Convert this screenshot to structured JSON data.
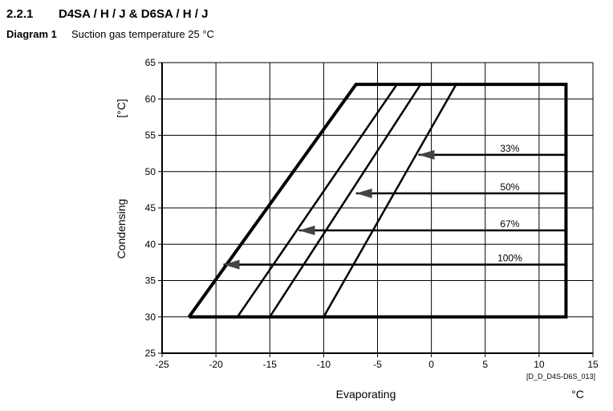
{
  "header": {
    "section": "2.2.1",
    "title": "D4SA / H / J & D6SA / H / J",
    "diagram_label": "Diagram 1",
    "diagram_caption": "Suction gas temperature 25 °C"
  },
  "chart_data": {
    "type": "line",
    "xlabel": "Evaporating",
    "xunit": "°C",
    "ylabel": "Condensing",
    "yunit": "[°C]",
    "code": "[D_D_D4S-D6S_013]",
    "xlim": [
      -25,
      15
    ],
    "ylim": [
      25,
      65
    ],
    "xticks": [
      -25,
      -20,
      -15,
      -10,
      -5,
      0,
      5,
      10,
      15
    ],
    "yticks": [
      25,
      30,
      35,
      40,
      45,
      50,
      55,
      60,
      65
    ],
    "grid": true,
    "envelope": {
      "x": [
        -22.5,
        -7,
        12.5,
        12.5,
        -22.5
      ],
      "y": [
        30,
        62,
        62,
        30,
        30
      ]
    },
    "lines": [
      {
        "x": [
          -18,
          -3.2
        ],
        "y": [
          30,
          62
        ]
      },
      {
        "x": [
          -15,
          -1
        ],
        "y": [
          30,
          62
        ]
      },
      {
        "x": [
          -10,
          2.3
        ],
        "y": [
          30,
          62
        ]
      }
    ],
    "series": [
      {
        "name": "33%",
        "color": "#444444",
        "x": [
          12.5,
          -1.2
        ],
        "y": [
          52.3,
          52.3
        ]
      },
      {
        "name": "50%",
        "color": "#444444",
        "x": [
          12.5,
          -7
        ],
        "y": [
          47,
          47
        ]
      },
      {
        "name": "67%",
        "color": "#444444",
        "x": [
          12.5,
          -12.3
        ],
        "y": [
          41.9,
          41.9
        ]
      },
      {
        "name": "100%",
        "color": "#444444",
        "x": [
          12.5,
          -19.3
        ],
        "y": [
          37.2,
          37.2
        ]
      }
    ]
  }
}
